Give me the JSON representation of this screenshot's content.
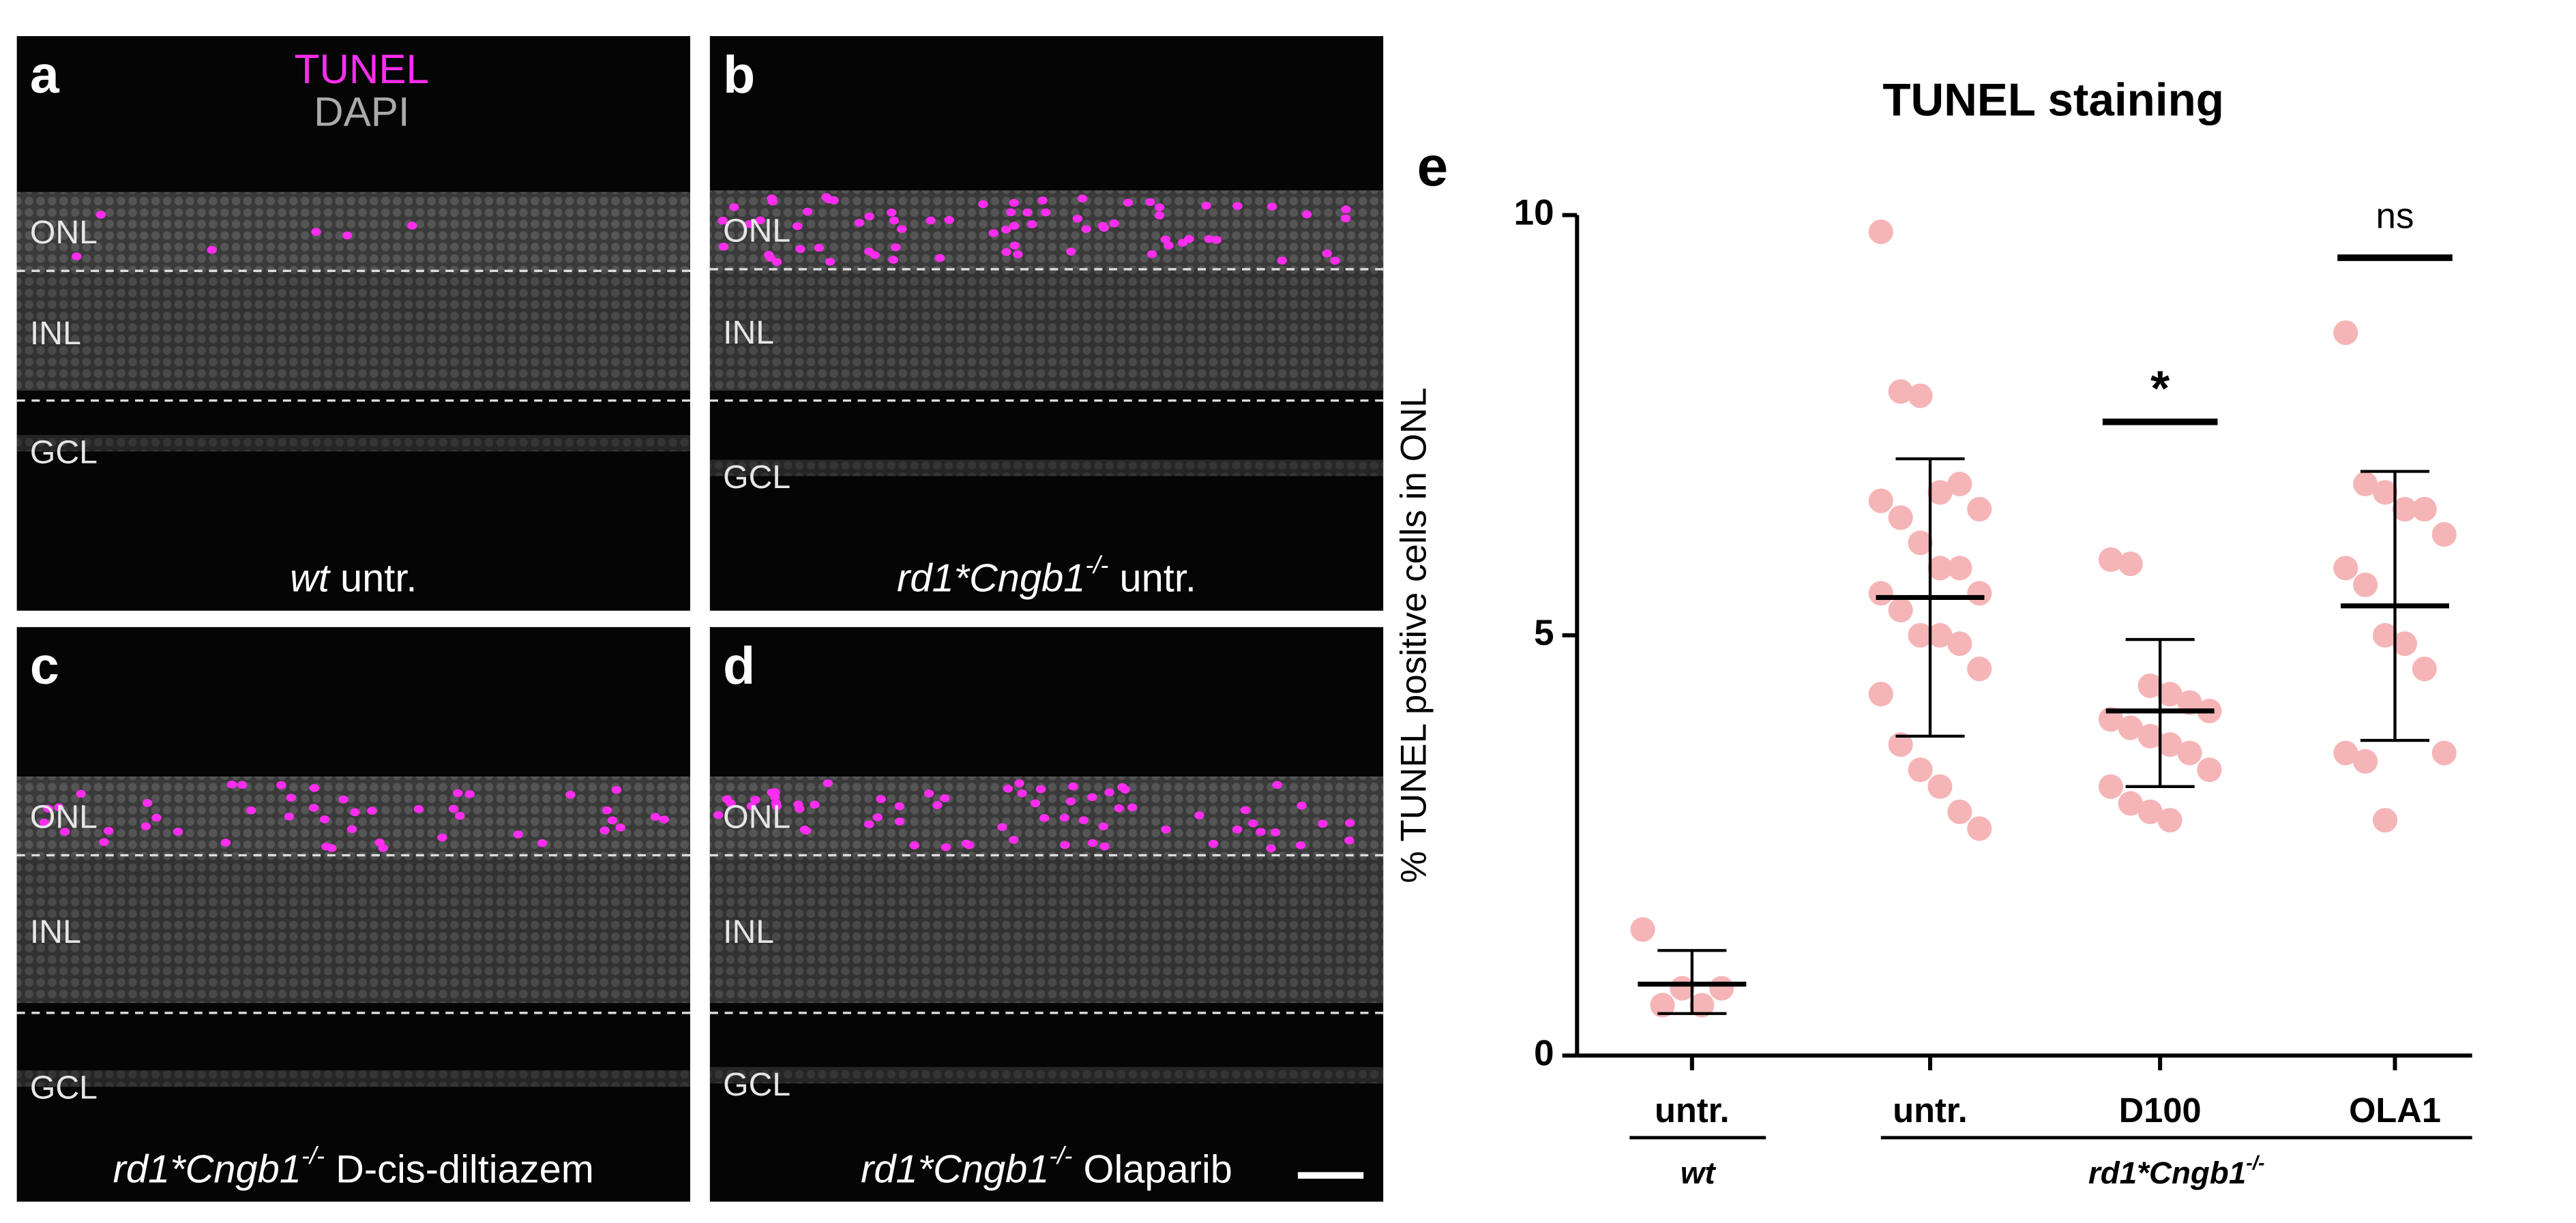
{
  "stain_labels": [
    "TUNEL",
    "DAPI"
  ],
  "layers": [
    "ONL",
    "INL",
    "GCL"
  ],
  "panels": [
    {
      "letter": "a",
      "caption": {
        "genotype": "wt",
        "treatment": "untr."
      }
    },
    {
      "letter": "b",
      "caption": {
        "genotype": "rd1*Cngb1",
        "superscript": "-/-",
        "treatment": "untr."
      }
    },
    {
      "letter": "c",
      "caption": {
        "genotype": "rd1*Cngb1",
        "superscript": "-/-",
        "treatment": "D-cis-diltiazem"
      }
    },
    {
      "letter": "d",
      "caption": {
        "genotype": "rd1*Cngb1",
        "superscript": "-/-",
        "treatment": "Olaparib"
      }
    }
  ],
  "chart_data": {
    "type": "scatter",
    "panel_letter": "e",
    "title": "TUNEL staining",
    "y_label": "% TUNEL positive cells in ONL",
    "categories": [
      "untr.",
      "untr.",
      "D100",
      "OLA1"
    ],
    "groups": [
      {
        "label": "wt",
        "categories": [
          0
        ]
      },
      {
        "label": "rd1*Cngb1",
        "superscript": "-/-",
        "categories": [
          1,
          2,
          3
        ]
      }
    ],
    "point_color": "#f5b5b7",
    "points": [
      [
        1.5,
        0.6,
        0.8,
        0.6,
        0.8
      ],
      [
        9.8,
        7.9,
        7.85,
        6.7,
        6.8,
        6.5,
        6.6,
        6.4,
        6.1,
        5.8,
        5.8,
        5.5,
        5.5,
        5.3,
        5.0,
        5.0,
        4.9,
        4.6,
        4.3,
        3.7,
        3.4,
        3.2,
        2.9,
        2.7
      ],
      [
        5.9,
        5.85,
        4.4,
        4.3,
        4.2,
        4.1,
        4.0,
        3.9,
        3.8,
        3.7,
        3.6,
        3.4,
        3.2,
        3.0,
        2.9,
        2.8
      ],
      [
        8.6,
        6.8,
        6.7,
        6.5,
        6.5,
        6.2,
        5.8,
        5.6,
        5.0,
        4.9,
        4.6,
        3.6,
        3.6,
        3.5,
        2.8
      ]
    ],
    "means": [
      0.85,
      5.45,
      4.1,
      5.35
    ],
    "error_low": [
      0.5,
      3.8,
      3.2,
      3.75
    ],
    "error_high": [
      1.25,
      7.1,
      4.95,
      6.95
    ],
    "annotations": [
      {
        "text": "*",
        "category": 2
      },
      {
        "text": "ns",
        "category": 3
      }
    ],
    "ylim": [
      0,
      10
    ],
    "yticks": [
      0,
      5,
      10
    ]
  }
}
